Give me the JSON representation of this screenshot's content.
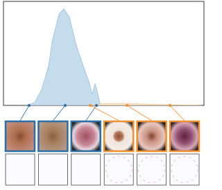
{
  "chart_data": {
    "type": "density",
    "xlim": [
      0,
      100
    ],
    "ylim": [
      0,
      100
    ],
    "series": [
      {
        "color": "#4a90c8",
        "fill": "#b7d3e8",
        "x": [
          12.1,
          15.6,
          19,
          22.5,
          24.2,
          27.7,
          30.1,
          32.9,
          36.3,
          39.8,
          42.6,
          44.3,
          45.7,
          47.1,
          48.4
        ],
        "values": [
          0,
          3,
          15,
          38,
          61,
          88,
          93,
          85,
          58,
          38,
          23,
          11,
          21,
          11,
          0
        ]
      },
      {
        "color": "#f0a050",
        "fill": "#f8dcb8",
        "x": [
          43.3,
          50.2,
          60.6,
          67.5,
          77.9,
          88.2,
          98.6
        ],
        "values": [
          0,
          2,
          2,
          1.5,
          1,
          0.5,
          0
        ]
      }
    ],
    "samples": [
      {
        "x": 12.8,
        "color": "#2a6fa8"
      },
      {
        "x": 30.8,
        "color": "#2a6fa8"
      },
      {
        "x": 46.4,
        "color": "#2a6fa8"
      },
      {
        "x": 43.3,
        "color": "#f09030"
      },
      {
        "x": 61.6,
        "color": "#f09030"
      },
      {
        "x": 83,
        "color": "#f09030"
      }
    ]
  }
}
